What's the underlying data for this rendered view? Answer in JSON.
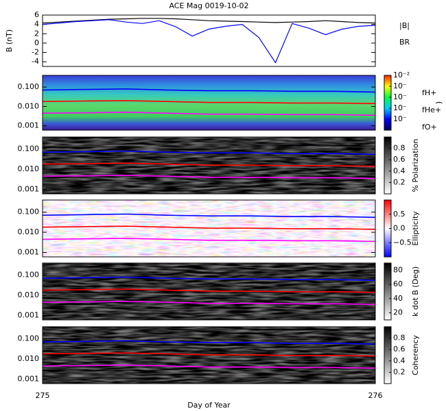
{
  "chart_data": [
    {
      "type": "line",
      "title": "ACE Mag 0019-10-02",
      "ylabel": "B (nT)",
      "x": [
        275,
        275.05,
        275.1,
        275.15,
        275.2,
        275.25,
        275.3,
        275.35,
        275.4,
        275.45,
        275.5,
        275.55,
        275.6,
        275.65,
        275.7,
        275.75,
        275.8,
        275.85,
        275.9,
        275.95,
        276
      ],
      "series": [
        {
          "name": "|B|",
          "color": "#000000",
          "values": [
            4.3,
            4.5,
            4.7,
            4.9,
            5.1,
            5.2,
            5.3,
            5.3,
            5.2,
            5.0,
            4.8,
            4.7,
            4.6,
            4.5,
            4.4,
            4.5,
            4.6,
            4.8,
            4.6,
            4.4,
            4.3
          ]
        },
        {
          "name": "BR",
          "color": "#0000ff",
          "values": [
            4.0,
            4.3,
            4.6,
            4.8,
            5.0,
            4.5,
            4.2,
            4.8,
            3.5,
            1.5,
            3.0,
            3.6,
            4.0,
            1.2,
            -4.2,
            4.2,
            3.2,
            1.8,
            3.0,
            3.6,
            3.8
          ]
        }
      ],
      "xlim": [
        275,
        276
      ],
      "ylim": [
        -5,
        6
      ],
      "yticks": [
        -4,
        -2,
        0,
        2,
        4,
        6
      ],
      "legend": "outside-right"
    },
    {
      "type": "spectrogram",
      "log_y": true,
      "palette": "rainbow",
      "x": [
        275,
        275.125,
        275.25,
        275.375,
        275.5,
        275.625,
        275.75,
        275.875,
        276
      ],
      "series": [
        {
          "name": "fH+",
          "color": "#0000ff",
          "values": [
            0.07,
            0.075,
            0.08,
            0.07,
            0.065,
            0.065,
            0.06,
            0.06,
            0.055
          ]
        },
        {
          "name": "fHe+",
          "color": "#ff0000",
          "values": [
            0.018,
            0.019,
            0.02,
            0.018,
            0.016,
            0.016,
            0.015,
            0.015,
            0.014
          ]
        },
        {
          "name": "fO+",
          "color": "#ff00ff",
          "values": [
            0.0045,
            0.0047,
            0.005,
            0.0045,
            0.004,
            0.004,
            0.0038,
            0.0038,
            0.0035
          ]
        }
      ],
      "xlim": [
        275,
        276
      ],
      "ylim": [
        0.0006,
        0.4
      ],
      "yticks": [
        {
          "value": 0.001,
          "label": "0.001"
        },
        {
          "value": 0.01,
          "label": "0.010"
        },
        {
          "value": 0.1,
          "label": "0.100"
        }
      ],
      "legend": "outside-right",
      "colorbar": {
        "label": ")",
        "log": true,
        "clim": [
          1e-07,
          0.01
        ],
        "ticks": [
          {
            "value": 0.01,
            "label": "10⁻²"
          },
          {
            "value": 0.001,
            "label": "10⁻"
          },
          {
            "value": 0.0001,
            "label": "10⁻"
          },
          {
            "value": 1e-05,
            "label": "10⁻"
          },
          {
            "value": 1e-06,
            "label": "10⁻"
          }
        ]
      }
    },
    {
      "type": "spectrogram",
      "log_y": true,
      "palette": "gray",
      "x": [
        275,
        275.125,
        275.25,
        275.375,
        275.5,
        275.625,
        275.75,
        275.875,
        276
      ],
      "series": [
        {
          "name": "fH+",
          "color": "#0000ff",
          "values": [
            0.07,
            0.075,
            0.08,
            0.07,
            0.065,
            0.065,
            0.06,
            0.06,
            0.055
          ]
        },
        {
          "name": "fHe+",
          "color": "#ff0000",
          "values": [
            0.018,
            0.019,
            0.02,
            0.018,
            0.016,
            0.016,
            0.015,
            0.015,
            0.014
          ]
        },
        {
          "name": "fO+",
          "color": "#ff00ff",
          "values": [
            0.0045,
            0.0047,
            0.005,
            0.0045,
            0.004,
            0.004,
            0.0038,
            0.0038,
            0.0035
          ]
        }
      ],
      "xlim": [
        275,
        276
      ],
      "ylim": [
        0.0006,
        0.4
      ],
      "yticks": [
        {
          "value": 0.001,
          "label": "0.001"
        },
        {
          "value": 0.01,
          "label": "0.010"
        },
        {
          "value": 0.1,
          "label": "0.100"
        }
      ],
      "colorbar": {
        "label": "% Polarization",
        "clim": [
          0,
          1
        ],
        "ticks": [
          0.2,
          0.4,
          0.6,
          0.8
        ]
      }
    },
    {
      "type": "spectrogram",
      "log_y": true,
      "palette": "redblue",
      "x": [
        275,
        275.125,
        275.25,
        275.375,
        275.5,
        275.625,
        275.75,
        275.875,
        276
      ],
      "series": [
        {
          "name": "fH+",
          "color": "#0000ff",
          "values": [
            0.07,
            0.075,
            0.08,
            0.07,
            0.065,
            0.065,
            0.06,
            0.06,
            0.055
          ]
        },
        {
          "name": "fHe+",
          "color": "#ff0000",
          "values": [
            0.018,
            0.019,
            0.02,
            0.018,
            0.016,
            0.016,
            0.015,
            0.015,
            0.014
          ]
        },
        {
          "name": "fO+",
          "color": "#ff00ff",
          "values": [
            0.0045,
            0.0047,
            0.005,
            0.0045,
            0.004,
            0.004,
            0.0038,
            0.0038,
            0.0035
          ]
        }
      ],
      "xlim": [
        275,
        276
      ],
      "ylim": [
        0.0006,
        0.4
      ],
      "yticks": [
        {
          "value": 0.001,
          "label": "0.001"
        },
        {
          "value": 0.01,
          "label": "0.010"
        },
        {
          "value": 0.1,
          "label": "0.100"
        }
      ],
      "colorbar": {
        "label": "Ellipticity",
        "clim": [
          -1,
          1
        ],
        "ticks": [
          {
            "value": -0.5,
            "label": "−0.5"
          },
          {
            "value": 0,
            "label": "0.0"
          },
          0.5
        ]
      }
    },
    {
      "type": "spectrogram",
      "log_y": true,
      "palette": "gray",
      "x": [
        275,
        275.125,
        275.25,
        275.375,
        275.5,
        275.625,
        275.75,
        275.875,
        276
      ],
      "series": [
        {
          "name": "fH+",
          "color": "#0000ff",
          "values": [
            0.07,
            0.075,
            0.08,
            0.07,
            0.065,
            0.065,
            0.06,
            0.06,
            0.055
          ]
        },
        {
          "name": "fHe+",
          "color": "#ff0000",
          "values": [
            0.018,
            0.019,
            0.02,
            0.018,
            0.016,
            0.016,
            0.015,
            0.015,
            0.014
          ]
        },
        {
          "name": "fO+",
          "color": "#ff00ff",
          "values": [
            0.0045,
            0.0047,
            0.005,
            0.0045,
            0.004,
            0.004,
            0.0038,
            0.0038,
            0.0035
          ]
        }
      ],
      "xlim": [
        275,
        276
      ],
      "ylim": [
        0.0006,
        0.4
      ],
      "yticks": [
        {
          "value": 0.001,
          "label": "0.001"
        },
        {
          "value": 0.01,
          "label": "0.010"
        },
        {
          "value": 0.1,
          "label": "0.100"
        }
      ],
      "colorbar": {
        "label": "k dot B (Deg)",
        "clim": [
          10,
          90
        ],
        "ticks": [
          20,
          40,
          60,
          80
        ]
      }
    },
    {
      "type": "spectrogram",
      "log_y": true,
      "palette": "gray",
      "x": [
        275,
        275.125,
        275.25,
        275.375,
        275.5,
        275.625,
        275.75,
        275.875,
        276
      ],
      "series": [
        {
          "name": "fH+",
          "color": "#0000ff",
          "values": [
            0.07,
            0.075,
            0.08,
            0.07,
            0.065,
            0.065,
            0.06,
            0.06,
            0.055
          ]
        },
        {
          "name": "fHe+",
          "color": "#ff0000",
          "values": [
            0.018,
            0.019,
            0.02,
            0.018,
            0.016,
            0.016,
            0.015,
            0.015,
            0.014
          ]
        },
        {
          "name": "fO+",
          "color": "#ff00ff",
          "values": [
            0.0045,
            0.0047,
            0.005,
            0.0045,
            0.004,
            0.004,
            0.0038,
            0.0038,
            0.0035
          ]
        }
      ],
      "xlim": [
        275,
        276
      ],
      "ylim": [
        0.0006,
        0.4
      ],
      "yticks": [
        {
          "value": 0.001,
          "label": "0.001"
        },
        {
          "value": 0.01,
          "label": "0.010"
        },
        {
          "value": 0.1,
          "label": "0.100"
        }
      ],
      "colorbar": {
        "label": "Coherency",
        "clim": [
          0,
          1
        ],
        "ticks": [
          0.2,
          0.4,
          0.6,
          0.8
        ]
      },
      "xlabel": "Day of Year",
      "xticks": [
        275,
        276
      ]
    }
  ]
}
